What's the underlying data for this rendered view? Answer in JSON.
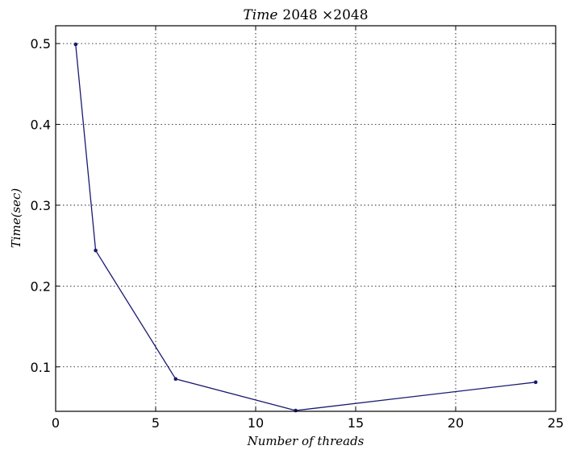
{
  "chart_data": {
    "type": "line",
    "title_italic": "Time",
    "title_rest": "2048 ×2048",
    "xlabel": "Number of threads",
    "ylabel": "Time(sec)",
    "xlim": [
      0,
      25
    ],
    "ylim": [
      0.045,
      0.522
    ],
    "xticks": [
      0,
      5,
      10,
      15,
      20,
      25
    ],
    "xtick_labels": [
      "0",
      "5",
      "10",
      "15",
      "20",
      "25"
    ],
    "yticks": [
      0.1,
      0.2,
      0.3,
      0.4,
      0.5
    ],
    "ytick_labels": [
      "0.1",
      "0.2",
      "0.3",
      "0.4",
      "0.5"
    ],
    "grid": true,
    "series": [
      {
        "color": "#191970",
        "x": [
          1,
          2,
          6,
          12,
          24
        ],
        "y": [
          0.499,
          0.244,
          0.085,
          0.046,
          0.081
        ]
      }
    ]
  }
}
